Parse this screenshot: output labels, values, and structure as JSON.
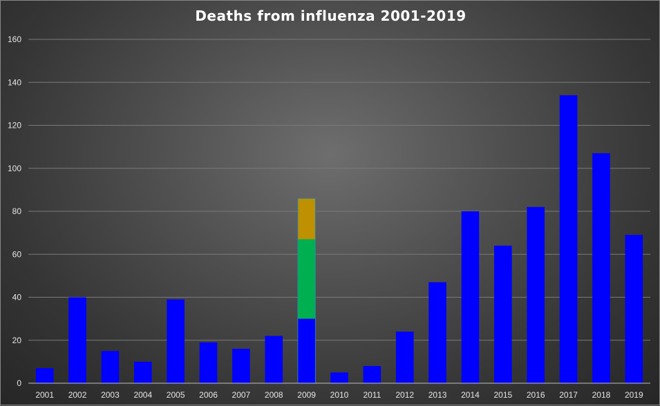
{
  "chart_data": {
    "type": "bar",
    "title": "Deaths from influenza 2001-2019",
    "xlabel": "",
    "ylabel": "",
    "ylim": [
      0,
      160
    ],
    "yticks": [
      0,
      20,
      40,
      60,
      80,
      100,
      120,
      140,
      160
    ],
    "grid": true,
    "legend": "none",
    "categories": [
      "2001",
      "2002",
      "2003",
      "2004",
      "2005",
      "2006",
      "2007",
      "2008",
      "2009",
      "2010",
      "2011",
      "2012",
      "2013",
      "2014",
      "2015",
      "2016",
      "2017",
      "2018",
      "2019"
    ],
    "series": [
      {
        "color": "#0000ff",
        "values": [
          7,
          40,
          15,
          10,
          39,
          19,
          16,
          22,
          30,
          5,
          8,
          24,
          47,
          80,
          64,
          82,
          134,
          107,
          69
        ]
      },
      {
        "color": "#00b050",
        "values": [
          0,
          0,
          0,
          0,
          0,
          0,
          0,
          0,
          37,
          0,
          0,
          0,
          0,
          0,
          0,
          0,
          0,
          0,
          0
        ]
      },
      {
        "color": "#bf9000",
        "values": [
          0,
          0,
          0,
          0,
          0,
          0,
          0,
          0,
          19,
          0,
          0,
          0,
          0,
          0,
          0,
          0,
          0,
          0,
          0
        ]
      }
    ],
    "colors": {
      "grid": "#7a7a7a",
      "axis": "#bfbfbf",
      "tick_text": "#e6e6e6",
      "title": "#ffffff"
    }
  }
}
